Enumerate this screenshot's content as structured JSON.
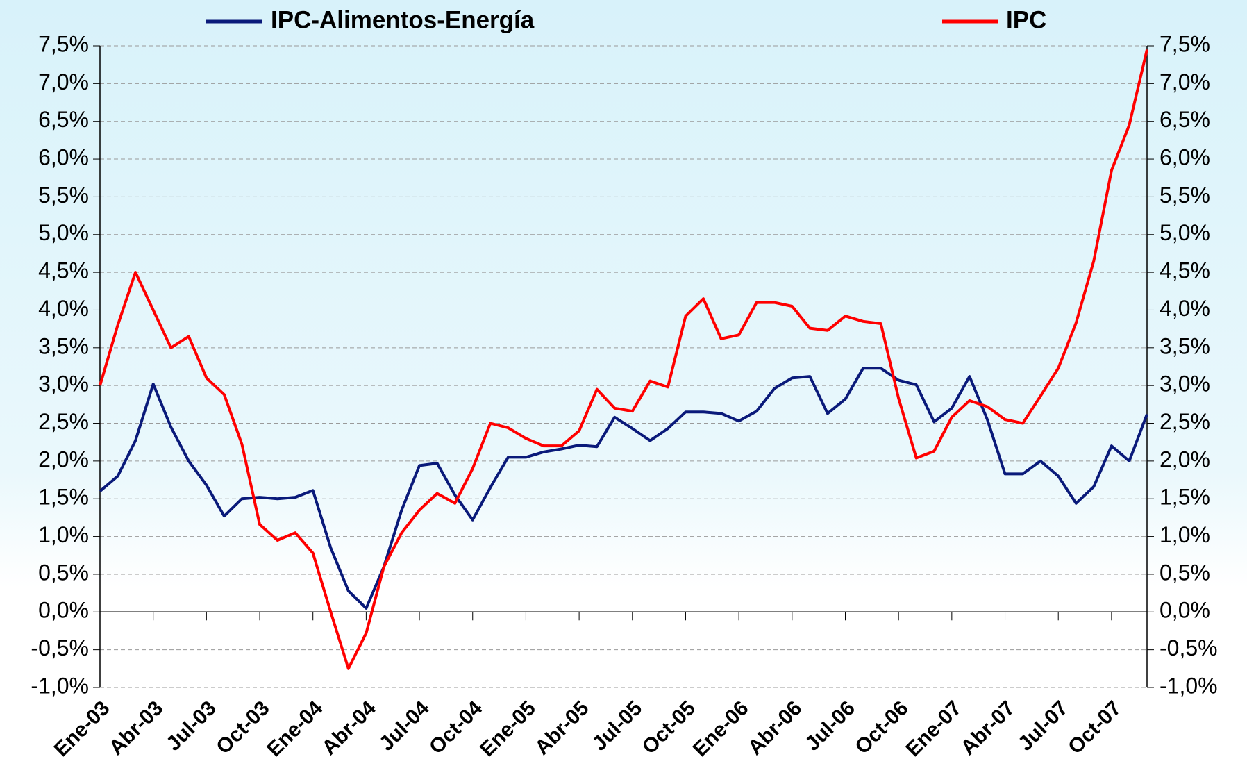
{
  "chart_data": {
    "type": "line",
    "categories": [
      "Ene-03",
      null,
      null,
      "Abr-03",
      null,
      null,
      "Jul-03",
      null,
      null,
      "Oct-03",
      null,
      null,
      "Ene-04",
      null,
      null,
      "Abr-04",
      null,
      null,
      "Jul-04",
      null,
      null,
      "Oct-04",
      null,
      null,
      "Ene-05",
      null,
      null,
      "Abr-05",
      null,
      null,
      "Jul-05",
      null,
      null,
      "Oct-05",
      null,
      null,
      "Ene-06",
      null,
      null,
      "Abr-06",
      null,
      null,
      "Jul-06",
      null,
      null,
      "Oct-06",
      null,
      null,
      "Ene-07",
      null,
      null,
      "Abr-07",
      null,
      null,
      "Jul-07",
      null,
      null,
      "Oct-07",
      null,
      null
    ],
    "series": [
      {
        "name": "IPC-Alimentos-Energía",
        "color": "#0a1a7a",
        "values": [
          1.6,
          1.8,
          2.27,
          3.02,
          2.45,
          2.0,
          1.68,
          1.27,
          1.5,
          1.52,
          1.5,
          1.52,
          1.61,
          0.85,
          0.28,
          0.05,
          0.6,
          1.35,
          1.94,
          1.97,
          1.55,
          1.22,
          1.65,
          2.05,
          2.05,
          2.12,
          2.16,
          2.21,
          2.19,
          2.58,
          2.43,
          2.27,
          2.43,
          2.65,
          2.65,
          2.63,
          2.53,
          2.66,
          2.96,
          3.1,
          3.12,
          2.63,
          2.82,
          3.23,
          3.23,
          3.07,
          3.01,
          2.52,
          2.7,
          3.12,
          2.55,
          1.83,
          1.83,
          2.0,
          1.8,
          1.44,
          1.66,
          2.2,
          2.0,
          2.62
        ]
      },
      {
        "name": "IPC",
        "color": "#ff0000",
        "values": [
          3.0,
          3.8,
          4.5,
          4.0,
          3.5,
          3.65,
          3.1,
          2.88,
          2.22,
          1.16,
          0.95,
          1.05,
          0.78,
          0.0,
          -0.75,
          -0.28,
          0.6,
          1.05,
          1.35,
          1.57,
          1.44,
          1.9,
          2.5,
          2.44,
          2.3,
          2.2,
          2.2,
          2.4,
          2.95,
          2.7,
          2.66,
          3.06,
          2.98,
          3.92,
          4.15,
          3.62,
          3.67,
          4.1,
          4.1,
          4.05,
          3.76,
          3.73,
          3.92,
          3.85,
          3.82,
          2.83,
          2.04,
          2.13,
          2.58,
          2.8,
          2.72,
          2.55,
          2.5,
          2.86,
          3.23,
          3.83,
          4.65,
          5.85,
          6.45,
          7.45
        ]
      }
    ],
    "ylim": [
      -1.0,
      7.5
    ],
    "yticks": [
      {
        "value": -1.0,
        "label": "-1,0%"
      },
      {
        "value": -0.5,
        "label": "-0,5%"
      },
      {
        "value": 0,
        "label": "0,0%"
      },
      {
        "value": 0.5,
        "label": "0,5%"
      },
      {
        "value": 1.0,
        "label": "1,0%"
      },
      {
        "value": 1.5,
        "label": "1,5%"
      },
      {
        "value": 2.0,
        "label": "2,0%"
      },
      {
        "value": 2.5,
        "label": "2,5%"
      },
      {
        "value": 3.0,
        "label": "3,0%"
      },
      {
        "value": 3.5,
        "label": "3,5%"
      },
      {
        "value": 4.0,
        "label": "4,0%"
      },
      {
        "value": 4.5,
        "label": "4,5%"
      },
      {
        "value": 5.0,
        "label": "5,0%"
      },
      {
        "value": 5.5,
        "label": "5,5%"
      },
      {
        "value": 6.0,
        "label": "6,0%"
      },
      {
        "value": 6.5,
        "label": "6,5%"
      },
      {
        "value": 7.0,
        "label": "7,0%"
      },
      {
        "value": 7.5,
        "label": "7,5%"
      }
    ],
    "grid": true
  }
}
